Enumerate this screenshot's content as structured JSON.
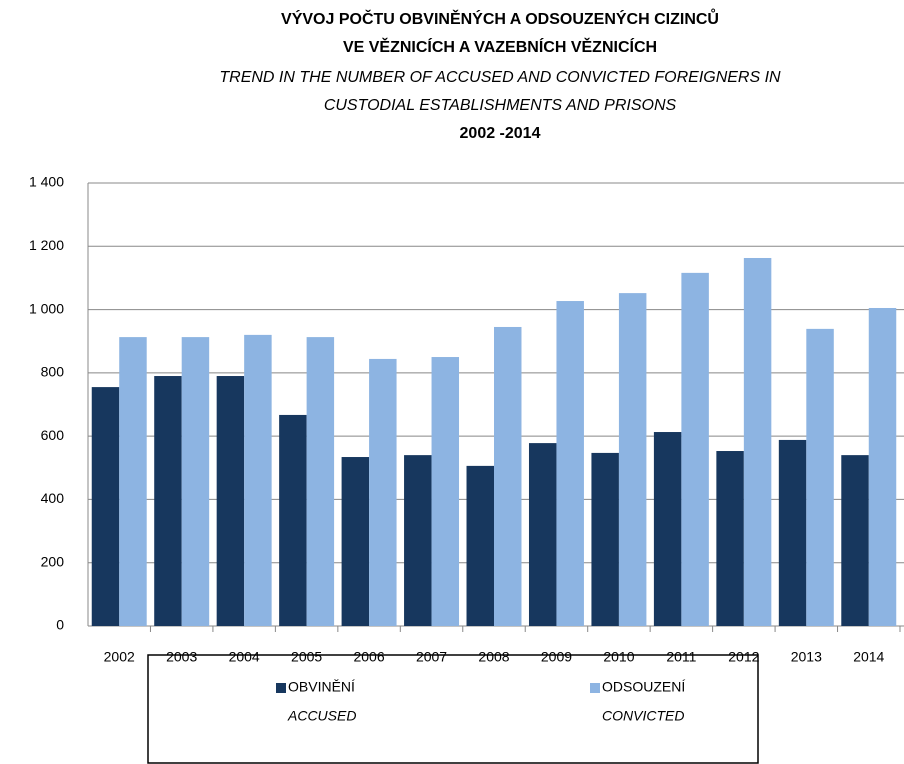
{
  "chart_data": {
    "type": "bar",
    "title_lines": [
      "VÝVOJ POČTU OBVINĚNÝCH A ODSOUZENÝCH CIZINCŮ",
      "VE VĚZNICÍCH A VAZEBNÍCH VĚZNICÍCH"
    ],
    "subtitle_lines": [
      "TREND IN THE NUMBER OF ACCUSED AND CONVICTED FOREIGNERS IN",
      "CUSTODIAL ESTABLISHMENTS AND PRISONS"
    ],
    "period": "2002 -2014",
    "categories": [
      "2002",
      "2003",
      "2004",
      "2005",
      "2006",
      "2007",
      "2008",
      "2009",
      "2010",
      "2011",
      "2012",
      "2013",
      "2014"
    ],
    "series": [
      {
        "name": "OBVINĚNÍ",
        "name_en": "ACCUSED",
        "color": "#17375e",
        "values": [
          755,
          790,
          790,
          667,
          534,
          540,
          506,
          578,
          547,
          613,
          553,
          588,
          540
        ]
      },
      {
        "name": "ODSOUZENÍ",
        "name_en": "CONVICTED",
        "color": "#8db4e2",
        "values": [
          913,
          913,
          920,
          913,
          844,
          850,
          945,
          1027,
          1052,
          1116,
          1163,
          939,
          1005
        ]
      }
    ],
    "ylim": [
      0,
      1400
    ],
    "yticks": [
      0,
      200,
      400,
      600,
      800,
      {
        "value": 1000,
        "label": "1 000"
      },
      {
        "value": 1200,
        "label": "1 200"
      },
      {
        "value": 1400,
        "label": "1 400"
      }
    ],
    "grid": true
  }
}
